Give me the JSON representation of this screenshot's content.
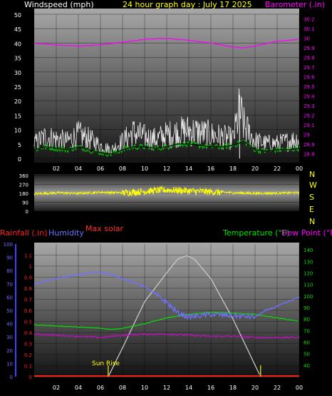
{
  "header": {
    "wind_label": "Windspeed (mph)",
    "title": "24 hour graph day : July 17 2025",
    "baro_label": "Barometer (.in)"
  },
  "labels": {
    "rainfall": "Rainfall (.in)",
    "humidity": "Humidity",
    "max_solar": "Max solar",
    "temperature": "Temperature (°F)",
    "dew_point": "Dew Point (°F)",
    "sun_rise": "Sun Rise"
  },
  "compass": [
    "N",
    "W",
    "S",
    "E",
    "N"
  ],
  "colors": {
    "wind": "#ffffff",
    "wind_avg": "#00d000",
    "barometer": "#ff00ff",
    "direction": "#ffff00",
    "rain": "#ff2020",
    "humidity": "#7070ff",
    "solar": "#c8c8c8",
    "temperature": "#00e000",
    "dewpoint": "#e000e0"
  },
  "chart_data": [
    {
      "type": "line",
      "title": "24 hour graph day : July 17 2025",
      "x_ticks": [
        "02",
        "04",
        "06",
        "08",
        "10",
        "12",
        "14",
        "16",
        "18",
        "20",
        "22",
        "00"
      ],
      "left_axis": {
        "label": "Windspeed (mph)",
        "ticks": [
          0,
          5,
          10,
          15,
          20,
          25,
          30,
          35,
          40,
          45,
          50
        ],
        "ylim": [
          0,
          50
        ]
      },
      "right_axis": {
        "label": "Barometer (.in)",
        "ticks": [
          "28.8",
          "28.9",
          "29",
          "29.1",
          "29.2",
          "29.3",
          "29.4",
          "29.5",
          "29.6",
          "29.7",
          "29.8",
          "29.9",
          "30",
          "30.1",
          "30.2"
        ],
        "ylim": [
          28.75,
          30.25
        ]
      },
      "series": [
        {
          "name": "Barometer",
          "axis": "right",
          "x": [
            0,
            2,
            4,
            6,
            8,
            10,
            12,
            14,
            16,
            18,
            19,
            20,
            22,
            24
          ],
          "y": [
            29.95,
            29.93,
            29.92,
            29.93,
            29.96,
            29.99,
            30.0,
            29.98,
            29.95,
            29.91,
            29.9,
            29.92,
            29.97,
            29.99
          ]
        },
        {
          "name": "Wind gust",
          "x": [
            0,
            1,
            2,
            3,
            4,
            5,
            6,
            7,
            8,
            9,
            10,
            11,
            12,
            13,
            14,
            15,
            16,
            17,
            18,
            18.6,
            19,
            20,
            21,
            22,
            23,
            24
          ],
          "y": [
            7,
            10,
            9,
            8,
            11,
            9,
            6,
            4,
            8,
            12,
            10,
            9,
            11,
            12,
            13,
            12,
            11,
            10,
            9,
            22,
            15,
            8,
            7,
            7,
            8,
            9
          ]
        },
        {
          "name": "Wind average",
          "x": [
            0,
            1,
            2,
            3,
            4,
            5,
            6,
            7,
            8,
            9,
            10,
            11,
            12,
            13,
            14,
            15,
            16,
            17,
            18,
            19,
            20,
            21,
            22,
            23,
            24
          ],
          "y": [
            3,
            4,
            3.5,
            3,
            4,
            3,
            2,
            1.5,
            3,
            4,
            4,
            3.5,
            4,
            5,
            5,
            4.5,
            4,
            4,
            4.5,
            6,
            3,
            2.5,
            3,
            3,
            3.5
          ]
        }
      ]
    },
    {
      "type": "line",
      "title": "",
      "x_ticks": [],
      "left_axis": {
        "ticks": [
          0,
          90,
          180,
          270,
          360
        ],
        "ylim": [
          0,
          360
        ]
      },
      "series": [
        {
          "name": "Wind direction",
          "x": [
            0,
            2,
            4,
            6,
            8,
            10,
            12,
            14,
            16,
            18,
            20,
            22,
            24
          ],
          "y": [
            175,
            185,
            180,
            190,
            185,
            200,
            215,
            205,
            195,
            185,
            180,
            182,
            185
          ]
        }
      ]
    },
    {
      "type": "line",
      "title": "",
      "x_ticks": [
        "02",
        "04",
        "06",
        "08",
        "10",
        "12",
        "14",
        "16",
        "18",
        "20",
        "22",
        "00"
      ],
      "axes": {
        "humidity": {
          "label": "Humidity",
          "ticks": [
            0,
            10,
            20,
            30,
            40,
            50,
            60,
            70,
            80,
            90,
            100
          ],
          "ylim": [
            0,
            100
          ]
        },
        "rainfall": {
          "label": "Rainfall (.in)",
          "ticks": [
            "0",
            "0.1",
            "0.2",
            "0.3",
            "0.4",
            "0.5",
            "0.6",
            "0.7",
            "0.8",
            "0.9",
            "1",
            "1.1"
          ],
          "ylim": [
            0,
            1.2
          ]
        },
        "temperature": {
          "label": "Temperature (°F)",
          "ticks": [
            40,
            50,
            60,
            70,
            80,
            90,
            100,
            110,
            120,
            130,
            140
          ],
          "ylim": [
            30,
            145
          ]
        }
      },
      "series": [
        {
          "name": "Humidity",
          "axis": "humidity",
          "x": [
            0,
            2,
            4,
            6,
            7,
            8,
            10,
            12,
            13,
            14,
            16,
            18,
            20,
            21,
            22,
            24
          ],
          "y": [
            70,
            74,
            77,
            79,
            77,
            74,
            68,
            56,
            48,
            45,
            47,
            46,
            45,
            50,
            53,
            60
          ]
        },
        {
          "name": "Temperature",
          "axis": "temperature",
          "x": [
            0,
            2,
            4,
            6,
            7,
            8,
            10,
            12,
            14,
            16,
            18,
            20,
            22,
            24
          ],
          "y": [
            75,
            74,
            73,
            72,
            71,
            72,
            76,
            81,
            84,
            86,
            85,
            84,
            81,
            78
          ]
        },
        {
          "name": "Dew Point",
          "axis": "temperature",
          "x": [
            0,
            2,
            4,
            6,
            8,
            10,
            12,
            14,
            16,
            18,
            20,
            22,
            24
          ],
          "y": [
            67,
            66,
            65,
            64,
            66,
            67,
            67,
            66,
            65,
            65,
            64,
            64,
            64
          ]
        },
        {
          "name": "Max solar",
          "axis": "temperature",
          "x": [
            6.7,
            8,
            10,
            12,
            13,
            13.8,
            14.5,
            16,
            18,
            20,
            20.5
          ],
          "y": [
            30,
            55,
            95,
            120,
            132,
            135,
            132,
            115,
            80,
            40,
            30
          ]
        },
        {
          "name": "Rainfall",
          "axis": "rainfall",
          "x": [
            0,
            24
          ],
          "y": [
            0,
            0
          ]
        }
      ],
      "markers": [
        {
          "label": "Sun Rise",
          "x": 6.7
        },
        {
          "x": 20.5
        }
      ]
    }
  ]
}
